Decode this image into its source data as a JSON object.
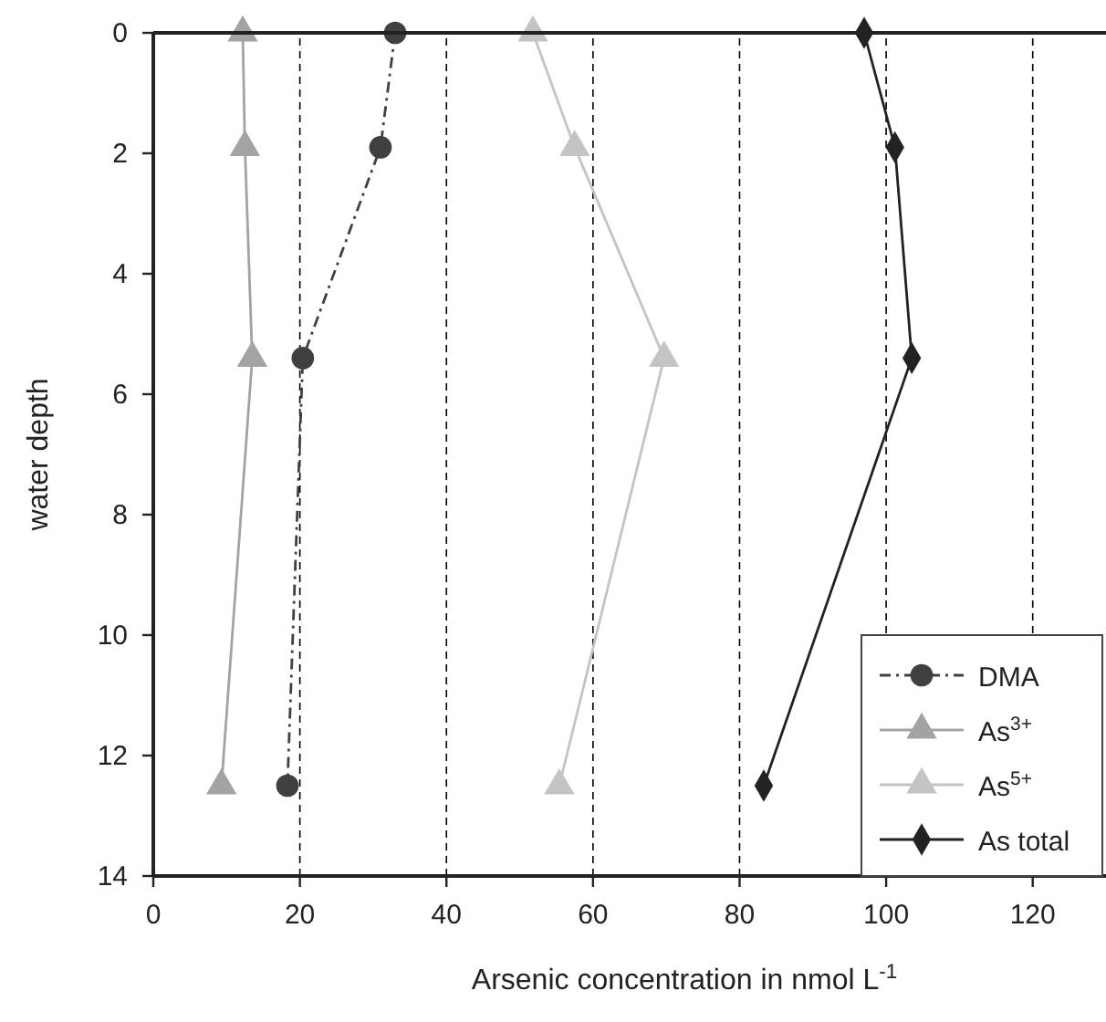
{
  "chart_data": {
    "type": "line",
    "xlabel": "Arsenic concentration in nmol L$^{-1}$",
    "ylabel": "water depth",
    "xlim": [
      0,
      130
    ],
    "xticks": [
      0,
      20,
      40,
      60,
      80,
      100,
      120
    ],
    "ylim": [
      14,
      0
    ],
    "yticks": [
      0,
      2,
      4,
      6,
      8,
      10,
      12,
      14
    ],
    "grid": "x",
    "legend": "bottom right",
    "series": [
      {
        "name": "DMA",
        "color": "#404040",
        "marker": "circle",
        "line_style": "dashed",
        "x": [
          33,
          31,
          20.4,
          18.3
        ],
        "values": [
          0,
          1.9,
          5.4,
          12.5
        ]
      },
      {
        "name": "As$^{3+}$",
        "color": "#a3a3a3",
        "marker": "triangle",
        "line_style": "solid",
        "x": [
          12.2,
          12.5,
          13.5,
          9.3
        ],
        "values": [
          0,
          1.9,
          5.4,
          12.5
        ]
      },
      {
        "name": "As$^{5+}$",
        "color": "#c4c4c4",
        "marker": "triangle",
        "line_style": "solid",
        "x": [
          51.8,
          57.5,
          69.7,
          55.4
        ],
        "values": [
          0,
          1.9,
          5.4,
          12.5
        ]
      },
      {
        "name": "As total",
        "color": "#222222",
        "marker": "diamond",
        "line_style": "solid",
        "x": [
          97,
          101.2,
          103.5,
          83.3
        ],
        "values": [
          0,
          1.9,
          5.4,
          12.5
        ]
      }
    ]
  }
}
